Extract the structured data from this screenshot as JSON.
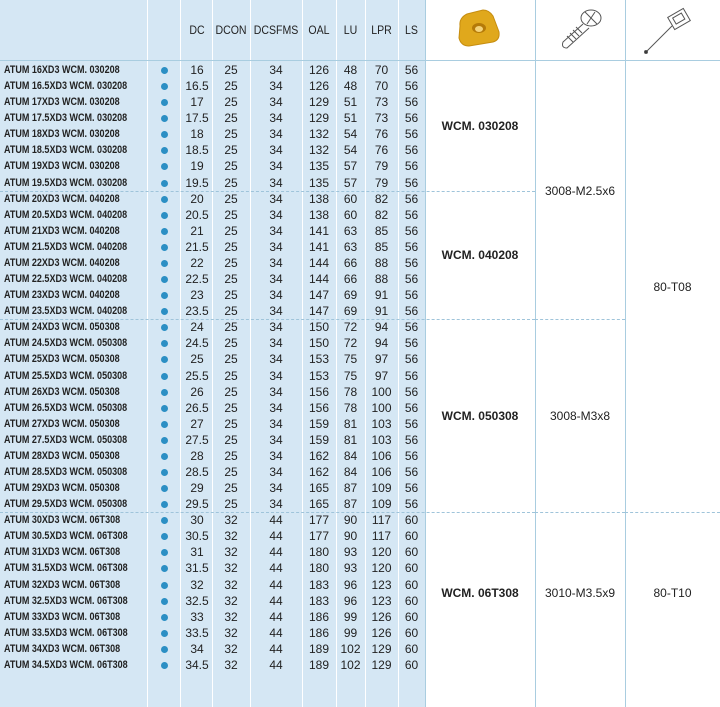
{
  "headers": [
    "DC",
    "DCON",
    "DCSFMS",
    "OAL",
    "LU",
    "LPR",
    "LS"
  ],
  "icons": {
    "insert": "insert-icon",
    "screw": "screw-icon",
    "key": "torx-key-icon"
  },
  "colors": {
    "panel": "#d5e7f4",
    "dot": "#2b8fc4",
    "insert": "#e0a81c"
  },
  "rows": [
    [
      "ATUM 16XD3 WCM. 030208",
      "16",
      "25",
      "34",
      "126",
      "48",
      "70",
      "56"
    ],
    [
      "ATUM 16.5XD3 WCM. 030208",
      "16.5",
      "25",
      "34",
      "126",
      "48",
      "70",
      "56"
    ],
    [
      "ATUM 17XD3 WCM. 030208",
      "17",
      "25",
      "34",
      "129",
      "51",
      "73",
      "56"
    ],
    [
      "ATUM 17.5XD3 WCM. 030208",
      "17.5",
      "25",
      "34",
      "129",
      "51",
      "73",
      "56"
    ],
    [
      "ATUM 18XD3 WCM. 030208",
      "18",
      "25",
      "34",
      "132",
      "54",
      "76",
      "56"
    ],
    [
      "ATUM 18.5XD3 WCM. 030208",
      "18.5",
      "25",
      "34",
      "132",
      "54",
      "76",
      "56"
    ],
    [
      "ATUM 19XD3 WCM. 030208",
      "19",
      "25",
      "34",
      "135",
      "57",
      "79",
      "56"
    ],
    [
      "ATUM 19.5XD3 WCM. 030208",
      "19.5",
      "25",
      "34",
      "135",
      "57",
      "79",
      "56"
    ],
    [
      "ATUM 20XD3 WCM. 040208",
      "20",
      "25",
      "34",
      "138",
      "60",
      "82",
      "56"
    ],
    [
      "ATUM 20.5XD3 WCM. 040208",
      "20.5",
      "25",
      "34",
      "138",
      "60",
      "82",
      "56"
    ],
    [
      "ATUM 21XD3 WCM. 040208",
      "21",
      "25",
      "34",
      "141",
      "63",
      "85",
      "56"
    ],
    [
      "ATUM 21.5XD3 WCM. 040208",
      "21.5",
      "25",
      "34",
      "141",
      "63",
      "85",
      "56"
    ],
    [
      "ATUM 22XD3 WCM. 040208",
      "22",
      "25",
      "34",
      "144",
      "66",
      "88",
      "56"
    ],
    [
      "ATUM 22.5XD3 WCM. 040208",
      "22.5",
      "25",
      "34",
      "144",
      "66",
      "88",
      "56"
    ],
    [
      "ATUM 23XD3 WCM. 040208",
      "23",
      "25",
      "34",
      "147",
      "69",
      "91",
      "56"
    ],
    [
      "ATUM 23.5XD3 WCM. 040208",
      "23.5",
      "25",
      "34",
      "147",
      "69",
      "91",
      "56"
    ],
    [
      "ATUM 24XD3 WCM. 050308",
      "24",
      "25",
      "34",
      "150",
      "72",
      "94",
      "56"
    ],
    [
      "ATUM 24.5XD3 WCM. 050308",
      "24.5",
      "25",
      "34",
      "150",
      "72",
      "94",
      "56"
    ],
    [
      "ATUM 25XD3 WCM. 050308",
      "25",
      "25",
      "34",
      "153",
      "75",
      "97",
      "56"
    ],
    [
      "ATUM 25.5XD3 WCM. 050308",
      "25.5",
      "25",
      "34",
      "153",
      "75",
      "97",
      "56"
    ],
    [
      "ATUM 26XD3 WCM. 050308",
      "26",
      "25",
      "34",
      "156",
      "78",
      "100",
      "56"
    ],
    [
      "ATUM 26.5XD3 WCM. 050308",
      "26.5",
      "25",
      "34",
      "156",
      "78",
      "100",
      "56"
    ],
    [
      "ATUM 27XD3 WCM. 050308",
      "27",
      "25",
      "34",
      "159",
      "81",
      "103",
      "56"
    ],
    [
      "ATUM 27.5XD3 WCM. 050308",
      "27.5",
      "25",
      "34",
      "159",
      "81",
      "103",
      "56"
    ],
    [
      "ATUM 28XD3 WCM. 050308",
      "28",
      "25",
      "34",
      "162",
      "84",
      "106",
      "56"
    ],
    [
      "ATUM 28.5XD3 WCM. 050308",
      "28.5",
      "25",
      "34",
      "162",
      "84",
      "106",
      "56"
    ],
    [
      "ATUM 29XD3 WCM. 050308",
      "29",
      "25",
      "34",
      "165",
      "87",
      "109",
      "56"
    ],
    [
      "ATUM 29.5XD3 WCM. 050308",
      "29.5",
      "25",
      "34",
      "165",
      "87",
      "109",
      "56"
    ],
    [
      "ATUM 30XD3 WCM. 06T308",
      "30",
      "32",
      "44",
      "177",
      "90",
      "117",
      "60"
    ],
    [
      "ATUM 30.5XD3 WCM. 06T308",
      "30.5",
      "32",
      "44",
      "177",
      "90",
      "117",
      "60"
    ],
    [
      "ATUM 31XD3 WCM. 06T308",
      "31",
      "32",
      "44",
      "180",
      "93",
      "120",
      "60"
    ],
    [
      "ATUM 31.5XD3 WCM. 06T308",
      "31.5",
      "32",
      "44",
      "180",
      "93",
      "120",
      "60"
    ],
    [
      "ATUM 32XD3 WCM. 06T308",
      "32",
      "32",
      "44",
      "183",
      "96",
      "123",
      "60"
    ],
    [
      "ATUM 32.5XD3 WCM. 06T308",
      "32.5",
      "32",
      "44",
      "183",
      "96",
      "123",
      "60"
    ],
    [
      "ATUM 33XD3 WCM. 06T308",
      "33",
      "32",
      "44",
      "186",
      "99",
      "126",
      "60"
    ],
    [
      "ATUM 33.5XD3 WCM. 06T308",
      "33.5",
      "32",
      "44",
      "186",
      "99",
      "126",
      "60"
    ],
    [
      "ATUM 34XD3 WCM. 06T308",
      "34",
      "32",
      "44",
      "189",
      "102",
      "129",
      "60"
    ],
    [
      "ATUM 34.5XD3 WCM. 06T308",
      "34.5",
      "32",
      "44",
      "189",
      "102",
      "129",
      "60"
    ]
  ],
  "inserts": [
    {
      "label": "WCM. 030208",
      "from": 0,
      "to": 8
    },
    {
      "label": "WCM. 040208",
      "from": 8,
      "to": 16
    },
    {
      "label": "WCM. 050308",
      "from": 16,
      "to": 28
    },
    {
      "label": "WCM. 06T308",
      "from": 28,
      "to": 38
    }
  ],
  "screws": [
    {
      "label": "3008-M2.5x6",
      "from": 0,
      "to": 16
    },
    {
      "label": "3008-M3x8",
      "from": 16,
      "to": 28
    },
    {
      "label": "3010-M3.5x9",
      "from": 28,
      "to": 38
    }
  ],
  "keys": [
    {
      "label": "80-T08",
      "from": 0,
      "to": 28
    },
    {
      "label": "80-T10",
      "from": 28,
      "to": 38
    }
  ]
}
